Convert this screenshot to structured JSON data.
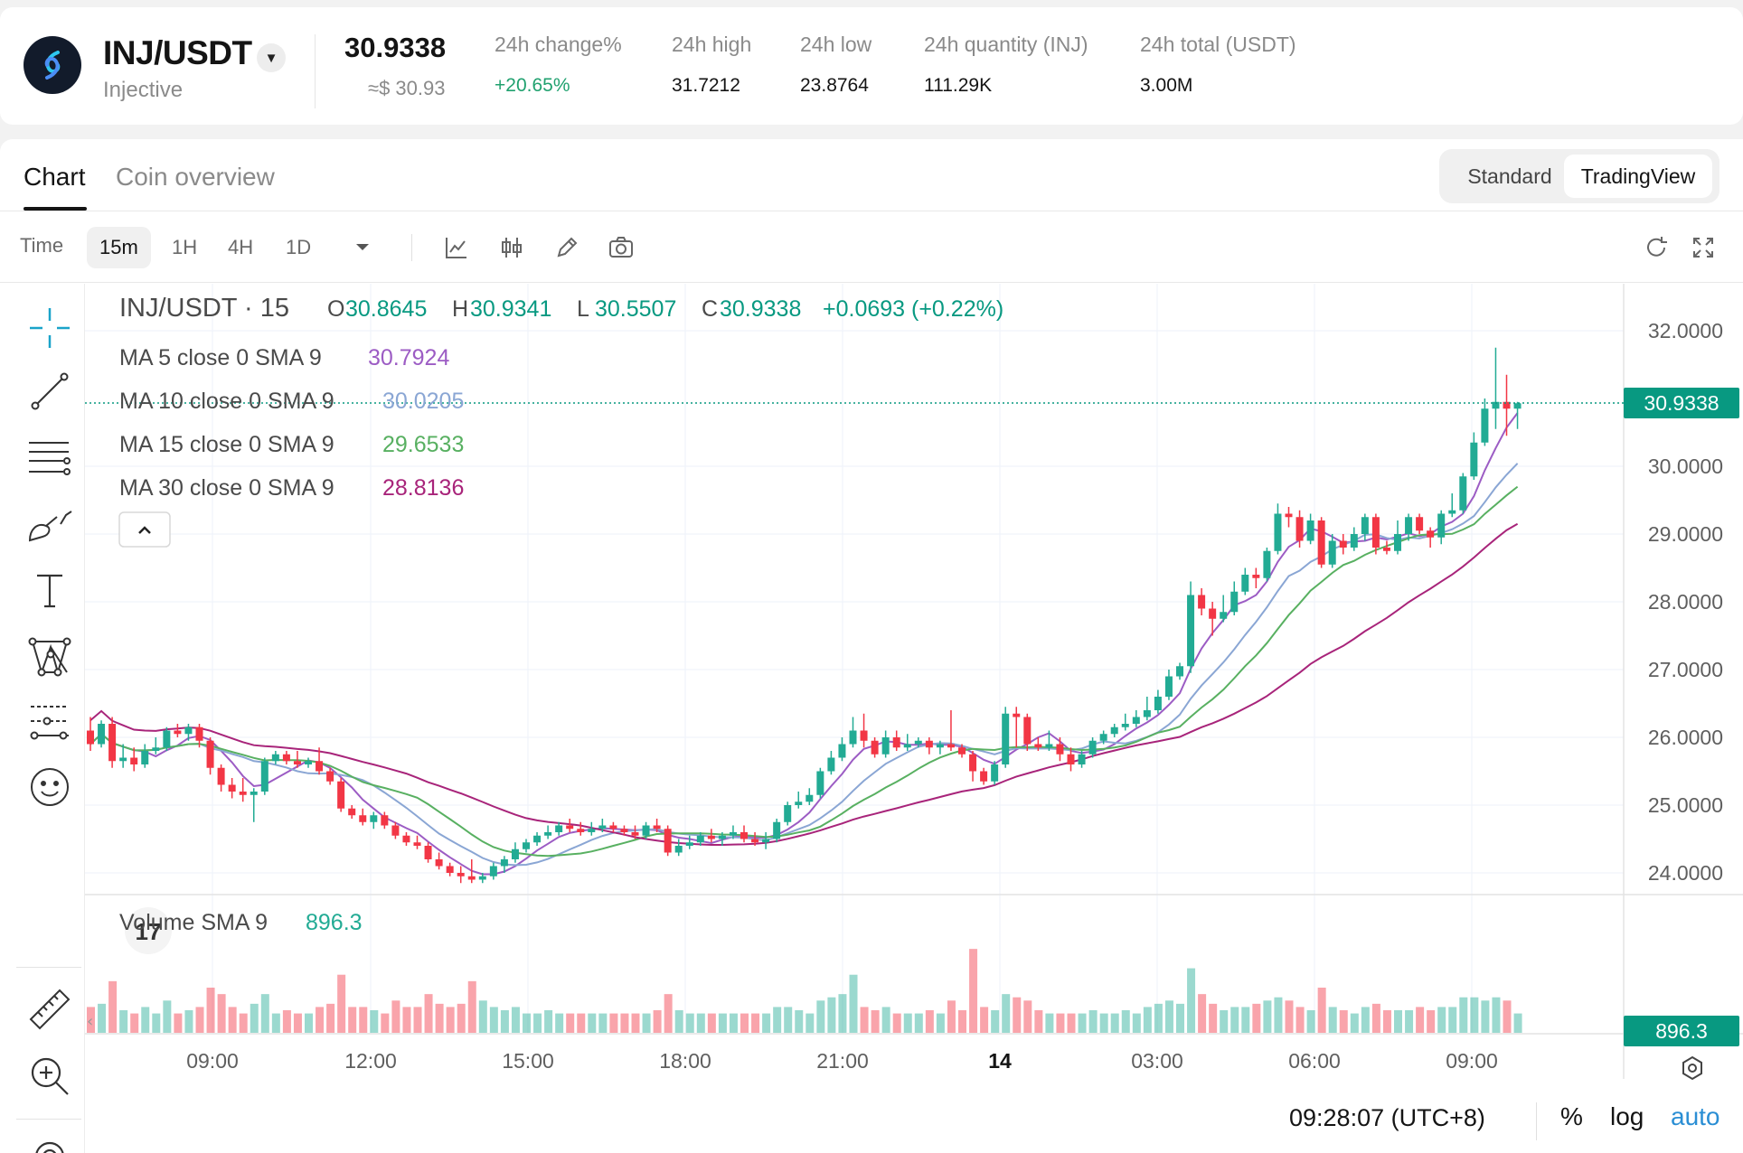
{
  "ticker": {
    "pair": "INJ/USDT",
    "coin_name": "Injective",
    "last_price": "30.9338",
    "fiat_price": "≈$ 30.93",
    "stats": [
      {
        "label": "24h change%",
        "value": "+20.65%",
        "positive": true
      },
      {
        "label": "24h high",
        "value": "31.7212",
        "positive": false
      },
      {
        "label": "24h low",
        "value": "23.8764",
        "positive": false
      },
      {
        "label": "24h quantity (INJ)",
        "value": "111.29K",
        "positive": false
      },
      {
        "label": "24h total (USDT)",
        "value": "3.00M",
        "positive": false
      }
    ]
  },
  "tabs": [
    {
      "label": "Chart"
    },
    {
      "label": "Coin overview"
    }
  ],
  "view_toggle": {
    "standard": "Standard",
    "tradingview": "TradingView"
  },
  "toolbar": {
    "time_label": "Time",
    "timeframes": [
      "15m",
      "1H",
      "4H",
      "1D"
    ],
    "active_timeframe": "15m"
  },
  "legend": {
    "symbol": "INJ/USDT · 15",
    "ohlc": [
      {
        "k": "O",
        "v": "30.8645"
      },
      {
        "k": "H",
        "v": "30.9341"
      },
      {
        "k": "L",
        "v": "30.5507"
      },
      {
        "k": "C",
        "v": "30.9338"
      }
    ],
    "change": "+0.0693 (+0.22%)",
    "indicators": [
      {
        "label": "MA 5 close 0 SMA 9",
        "value": "30.7924",
        "color": "#9c5cc4"
      },
      {
        "label": "MA 10 close 0 SMA 9",
        "value": "30.0205",
        "color": "#8aa6d4"
      },
      {
        "label": "MA 15 close 0 SMA 9",
        "value": "29.6533",
        "color": "#58b061"
      },
      {
        "label": "MA 30 close 0 SMA 9",
        "value": "28.8136",
        "color": "#a8247a"
      }
    ],
    "volume_label": "Volume SMA 9",
    "volume_value": "896.3"
  },
  "footer": {
    "time": "09:28:07 (UTC+8)",
    "percent": "%",
    "log": "log",
    "auto": "auto"
  },
  "colors": {
    "up": "#22ab94",
    "down": "#f23645",
    "accent": "#089981"
  },
  "chart_data": {
    "type": "candlestick",
    "interval": "15m",
    "price_axis": {
      "ticks": [
        32,
        30,
        29,
        28,
        27,
        26,
        25,
        24
      ],
      "tick_labels": [
        "32.0000",
        "30.0000",
        "29.0000",
        "28.0000",
        "27.0000",
        "26.0000",
        "25.0000",
        "24.0000"
      ],
      "range": [
        23.2,
        32.7
      ]
    },
    "time_axis": {
      "labels": [
        "09:00",
        "12:00",
        "15:00",
        "18:00",
        "21:00",
        "14",
        "03:00",
        "06:00",
        "09:00"
      ],
      "bold_label": "14"
    },
    "last_price_label": "30.9338",
    "last_volume_label": "896.3",
    "grid": true,
    "series_colors": {
      "up": "#22ab94",
      "down": "#f23645"
    },
    "ma_periods": [
      5,
      10,
      15,
      30
    ],
    "ma_colors": [
      "#9c5cc4",
      "#8aa6d4",
      "#58b061",
      "#a8247a"
    ],
    "candles": [
      [
        26.1,
        25.9,
        26.3,
        25.8,
        40
      ],
      [
        25.9,
        26.2,
        26.25,
        25.85,
        45
      ],
      [
        26.2,
        25.65,
        26.3,
        25.55,
        80
      ],
      [
        25.65,
        25.7,
        25.9,
        25.55,
        35
      ],
      [
        25.7,
        25.6,
        25.85,
        25.5,
        30
      ],
      [
        25.6,
        25.8,
        25.9,
        25.55,
        40
      ],
      [
        25.8,
        25.85,
        26.0,
        25.75,
        30
      ],
      [
        25.85,
        26.1,
        26.15,
        25.8,
        50
      ],
      [
        26.1,
        26.05,
        26.2,
        26.0,
        30
      ],
      [
        26.05,
        26.15,
        26.2,
        25.95,
        35
      ],
      [
        26.15,
        25.95,
        26.2,
        25.85,
        40
      ],
      [
        25.95,
        25.55,
        26.0,
        25.45,
        70
      ],
      [
        25.55,
        25.3,
        25.6,
        25.2,
        60
      ],
      [
        25.3,
        25.2,
        25.4,
        25.1,
        40
      ],
      [
        25.2,
        25.15,
        25.4,
        25.05,
        30
      ],
      [
        25.15,
        25.2,
        25.25,
        24.75,
        45
      ],
      [
        25.2,
        25.65,
        25.7,
        25.15,
        60
      ],
      [
        25.65,
        25.75,
        25.8,
        25.6,
        30
      ],
      [
        25.75,
        25.65,
        25.8,
        25.6,
        35
      ],
      [
        25.65,
        25.6,
        25.8,
        25.55,
        30
      ],
      [
        25.6,
        25.65,
        25.7,
        25.55,
        30
      ],
      [
        25.65,
        25.5,
        25.85,
        25.45,
        40
      ],
      [
        25.5,
        25.35,
        25.55,
        25.3,
        45
      ],
      [
        25.35,
        24.95,
        25.4,
        24.9,
        90
      ],
      [
        24.95,
        24.85,
        25.0,
        24.8,
        40
      ],
      [
        24.85,
        24.75,
        24.95,
        24.7,
        40
      ],
      [
        24.75,
        24.85,
        24.9,
        24.65,
        35
      ],
      [
        24.85,
        24.7,
        24.9,
        24.65,
        30
      ],
      [
        24.7,
        24.55,
        24.75,
        24.5,
        50
      ],
      [
        24.55,
        24.45,
        24.6,
        24.4,
        40
      ],
      [
        24.45,
        24.4,
        24.55,
        24.35,
        40
      ],
      [
        24.4,
        24.2,
        24.45,
        24.15,
        60
      ],
      [
        24.2,
        24.1,
        24.3,
        24.05,
        45
      ],
      [
        24.1,
        24.0,
        24.15,
        23.95,
        40
      ],
      [
        24.0,
        23.95,
        24.1,
        23.85,
        45
      ],
      [
        23.95,
        23.9,
        24.2,
        23.85,
        80
      ],
      [
        23.9,
        23.95,
        24.0,
        23.85,
        50
      ],
      [
        23.95,
        24.1,
        24.15,
        23.9,
        40
      ],
      [
        24.1,
        24.2,
        24.25,
        24.0,
        35
      ],
      [
        24.2,
        24.35,
        24.45,
        24.15,
        40
      ],
      [
        24.35,
        24.45,
        24.5,
        24.3,
        30
      ],
      [
        24.45,
        24.55,
        24.6,
        24.4,
        30
      ],
      [
        24.55,
        24.6,
        24.7,
        24.5,
        35
      ],
      [
        24.6,
        24.7,
        24.75,
        24.55,
        30
      ],
      [
        24.7,
        24.65,
        24.8,
        24.6,
        30
      ],
      [
        24.65,
        24.6,
        24.75,
        24.55,
        30
      ],
      [
        24.6,
        24.65,
        24.75,
        24.55,
        30
      ],
      [
        24.65,
        24.7,
        24.8,
        24.6,
        30
      ],
      [
        24.7,
        24.65,
        24.75,
        24.6,
        30
      ],
      [
        24.65,
        24.6,
        24.7,
        24.55,
        30
      ],
      [
        24.6,
        24.55,
        24.7,
        24.5,
        30
      ],
      [
        24.55,
        24.7,
        24.75,
        24.5,
        30
      ],
      [
        24.7,
        24.65,
        24.8,
        24.6,
        35
      ],
      [
        24.65,
        24.3,
        24.7,
        24.25,
        60
      ],
      [
        24.3,
        24.4,
        24.5,
        24.25,
        35
      ],
      [
        24.4,
        24.45,
        24.55,
        24.35,
        30
      ],
      [
        24.45,
        24.55,
        24.6,
        24.4,
        30
      ],
      [
        24.55,
        24.5,
        24.65,
        24.45,
        30
      ],
      [
        24.5,
        24.55,
        24.6,
        24.4,
        30
      ],
      [
        24.55,
        24.6,
        24.7,
        24.5,
        30
      ],
      [
        24.6,
        24.5,
        24.7,
        24.45,
        30
      ],
      [
        24.5,
        24.45,
        24.6,
        24.4,
        30
      ],
      [
        24.45,
        24.5,
        24.6,
        24.35,
        30
      ],
      [
        24.5,
        24.75,
        24.8,
        24.45,
        40
      ],
      [
        24.75,
        25.0,
        25.05,
        24.7,
        40
      ],
      [
        25.0,
        25.05,
        25.2,
        24.95,
        35
      ],
      [
        25.05,
        25.15,
        25.25,
        25.0,
        30
      ],
      [
        25.15,
        25.5,
        25.55,
        25.1,
        50
      ],
      [
        25.5,
        25.7,
        25.8,
        25.45,
        55
      ],
      [
        25.7,
        25.9,
        26.0,
        25.65,
        60
      ],
      [
        25.9,
        26.1,
        26.3,
        25.85,
        90
      ],
      [
        26.1,
        25.95,
        26.35,
        25.85,
        40
      ],
      [
        25.95,
        25.75,
        26.0,
        25.7,
        35
      ],
      [
        25.75,
        26.0,
        26.1,
        25.7,
        40
      ],
      [
        26.0,
        25.85,
        26.1,
        25.8,
        30
      ],
      [
        25.85,
        25.9,
        26.05,
        25.8,
        30
      ],
      [
        25.9,
        25.95,
        26.0,
        25.85,
        30
      ],
      [
        25.95,
        25.85,
        26.0,
        25.75,
        35
      ],
      [
        25.85,
        25.9,
        25.95,
        25.75,
        30
      ],
      [
        25.9,
        25.85,
        26.4,
        25.8,
        50
      ],
      [
        25.85,
        25.75,
        25.9,
        25.7,
        35
      ],
      [
        25.75,
        25.5,
        25.8,
        25.35,
        130
      ],
      [
        25.5,
        25.35,
        25.55,
        25.3,
        40
      ],
      [
        25.35,
        25.6,
        25.65,
        25.3,
        35
      ],
      [
        25.6,
        26.35,
        26.45,
        25.55,
        60
      ],
      [
        26.35,
        26.3,
        26.45,
        25.85,
        55
      ],
      [
        26.3,
        25.9,
        26.35,
        25.8,
        50
      ],
      [
        25.9,
        25.85,
        26.0,
        25.8,
        35
      ],
      [
        25.85,
        25.9,
        26.1,
        25.8,
        30
      ],
      [
        25.9,
        25.75,
        26.0,
        25.65,
        30
      ],
      [
        25.75,
        25.6,
        25.85,
        25.5,
        30
      ],
      [
        25.6,
        25.75,
        25.8,
        25.55,
        30
      ],
      [
        25.75,
        25.95,
        26.0,
        25.7,
        35
      ],
      [
        25.95,
        26.05,
        26.1,
        25.9,
        30
      ],
      [
        26.05,
        26.15,
        26.2,
        26.0,
        30
      ],
      [
        26.15,
        26.2,
        26.35,
        26.1,
        35
      ],
      [
        26.2,
        26.3,
        26.4,
        26.15,
        30
      ],
      [
        26.3,
        26.4,
        26.6,
        26.25,
        40
      ],
      [
        26.4,
        26.6,
        26.7,
        26.35,
        45
      ],
      [
        26.6,
        26.9,
        27.0,
        26.55,
        50
      ],
      [
        26.9,
        27.05,
        27.1,
        26.85,
        45
      ],
      [
        27.05,
        28.1,
        28.3,
        26.95,
        100
      ],
      [
        28.1,
        27.9,
        28.2,
        27.8,
        60
      ],
      [
        27.9,
        27.75,
        28.0,
        27.5,
        45
      ],
      [
        27.75,
        27.85,
        28.1,
        27.7,
        35
      ],
      [
        27.85,
        28.15,
        28.3,
        27.8,
        40
      ],
      [
        28.15,
        28.4,
        28.5,
        28.1,
        40
      ],
      [
        28.4,
        28.35,
        28.5,
        28.2,
        45
      ],
      [
        28.35,
        28.75,
        28.8,
        28.3,
        50
      ],
      [
        28.75,
        29.3,
        29.45,
        28.7,
        55
      ],
      [
        29.3,
        29.25,
        29.4,
        29.1,
        50
      ],
      [
        29.25,
        28.9,
        29.35,
        28.8,
        40
      ],
      [
        28.9,
        29.2,
        29.3,
        28.85,
        35
      ],
      [
        29.2,
        28.55,
        29.25,
        28.5,
        70
      ],
      [
        28.55,
        28.9,
        29.0,
        28.5,
        40
      ],
      [
        28.9,
        28.8,
        29.0,
        28.7,
        35
      ],
      [
        28.8,
        29.0,
        29.1,
        28.75,
        30
      ],
      [
        29.0,
        29.25,
        29.3,
        28.9,
        40
      ],
      [
        29.25,
        28.8,
        29.3,
        28.7,
        45
      ],
      [
        28.8,
        28.75,
        28.9,
        28.7,
        35
      ],
      [
        28.75,
        29.0,
        29.2,
        28.7,
        35
      ],
      [
        29.0,
        29.25,
        29.3,
        28.9,
        35
      ],
      [
        29.25,
        29.05,
        29.3,
        29.0,
        40
      ],
      [
        29.05,
        28.95,
        29.1,
        28.8,
        35
      ],
      [
        28.95,
        29.3,
        29.35,
        28.85,
        40
      ],
      [
        29.3,
        29.35,
        29.6,
        29.25,
        40
      ],
      [
        29.35,
        29.85,
        29.9,
        29.3,
        55
      ],
      [
        29.85,
        30.35,
        30.5,
        29.8,
        55
      ],
      [
        30.35,
        30.85,
        31.0,
        30.3,
        50
      ],
      [
        30.85,
        30.95,
        31.75,
        30.55,
        55
      ],
      [
        30.95,
        30.85,
        31.35,
        30.45,
        50
      ],
      [
        30.85,
        30.93,
        30.95,
        30.55,
        30
      ]
    ]
  }
}
